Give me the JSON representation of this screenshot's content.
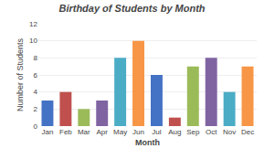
{
  "chart_data": {
    "type": "bar",
    "title": "Birthday of Students by Month",
    "xlabel": "Month",
    "ylabel": "Number of Students",
    "categories": [
      "Jan",
      "Feb",
      "Mar",
      "Apr",
      "May",
      "Jun",
      "Jul",
      "Aug",
      "Sep",
      "Oct",
      "Nov",
      "Dec"
    ],
    "values": [
      3,
      4,
      2,
      3,
      8,
      10,
      6,
      1,
      7,
      8,
      4,
      7
    ],
    "colors": [
      "#4472C4",
      "#C0504D",
      "#9BBB59",
      "#8064A2",
      "#4BACC6",
      "#F79646",
      "#4472C4",
      "#C0504D",
      "#9BBB59",
      "#8064A2",
      "#4BACC6",
      "#F79646"
    ],
    "ylim": [
      0,
      12
    ],
    "yticks": [
      0,
      2,
      4,
      6,
      8,
      10,
      12
    ],
    "grid": true
  }
}
